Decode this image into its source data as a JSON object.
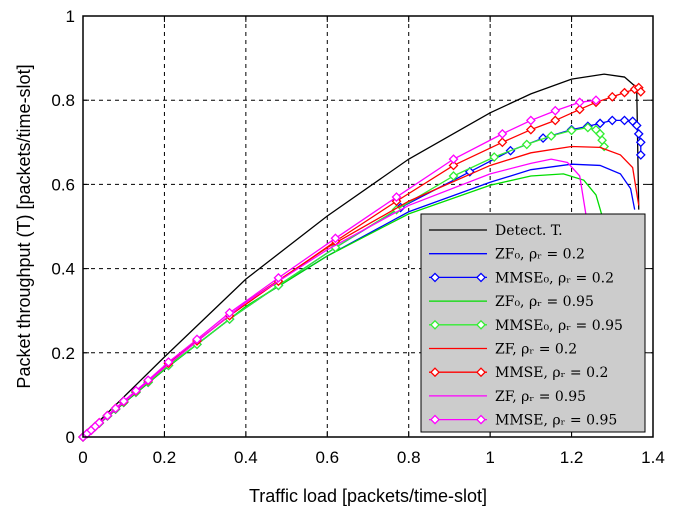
{
  "chart_data": {
    "type": "line",
    "xlabel": "Traffic load [packets/time-slot]",
    "ylabel": "Packet throughput (T) [packets/time-slot]",
    "xlim": [
      0,
      1.4
    ],
    "ylim": [
      0,
      1
    ],
    "xticks": [
      "0",
      "0.2",
      "0.4",
      "0.6",
      "0.8",
      "1",
      "1.2",
      "1.4"
    ],
    "yticks": [
      "0",
      "0.2",
      "0.4",
      "0.6",
      "0.8",
      "1"
    ],
    "grid": true,
    "legend_position": "lower-right",
    "series": [
      {
        "name": "Detect. T.",
        "color": "#000000",
        "marker": "none",
        "x": [
          0,
          0.2,
          0.4,
          0.6,
          0.8,
          1.0,
          1.1,
          1.2,
          1.28,
          1.33,
          1.36,
          1.365
        ],
        "y": [
          0,
          0.19,
          0.375,
          0.525,
          0.66,
          0.77,
          0.815,
          0.85,
          0.862,
          0.855,
          0.83,
          0.54
        ]
      },
      {
        "name": "ZF₀, ρᵣ = 0.2",
        "color": "#0000ff",
        "marker": "none",
        "x": [
          0,
          0.2,
          0.4,
          0.6,
          0.8,
          1.0,
          1.1,
          1.2,
          1.27,
          1.32,
          1.345,
          1.355
        ],
        "y": [
          0,
          0.16,
          0.31,
          0.43,
          0.535,
          0.605,
          0.635,
          0.648,
          0.645,
          0.625,
          0.59,
          0.54
        ]
      },
      {
        "name": "MMSE₀, ρᵣ = 0.2",
        "color": "#0000ff",
        "marker": "diamond",
        "x": [
          0,
          0.01,
          0.02,
          0.03,
          0.04,
          0.06,
          0.08,
          0.1,
          0.13,
          0.16,
          0.21,
          0.28,
          0.36,
          0.48,
          0.62,
          0.78,
          0.95,
          1.05,
          1.13,
          1.2,
          1.24,
          1.27,
          1.3,
          1.33,
          1.35,
          1.36,
          1.365,
          1.37,
          1.37
        ],
        "y": [
          0,
          0.008,
          0.016,
          0.025,
          0.033,
          0.05,
          0.066,
          0.082,
          0.106,
          0.13,
          0.17,
          0.22,
          0.28,
          0.36,
          0.45,
          0.545,
          0.63,
          0.68,
          0.71,
          0.73,
          0.738,
          0.745,
          0.752,
          0.752,
          0.75,
          0.74,
          0.72,
          0.7,
          0.67
        ]
      },
      {
        "name": "ZF₀, ρᵣ = 0.95",
        "color": "#00dd00",
        "marker": "none",
        "x": [
          0,
          0.2,
          0.4,
          0.6,
          0.8,
          1.0,
          1.1,
          1.18,
          1.23,
          1.26,
          1.275
        ],
        "y": [
          0,
          0.16,
          0.31,
          0.43,
          0.53,
          0.598,
          0.62,
          0.625,
          0.61,
          0.575,
          0.525
        ]
      },
      {
        "name": "MMSE₀, ρᵣ = 0.95",
        "color": "#33ee33",
        "marker": "diamond",
        "x": [
          0,
          0.01,
          0.02,
          0.03,
          0.04,
          0.06,
          0.08,
          0.1,
          0.13,
          0.16,
          0.21,
          0.28,
          0.36,
          0.48,
          0.62,
          0.77,
          0.91,
          1.01,
          1.09,
          1.15,
          1.2,
          1.24,
          1.26,
          1.27,
          1.275,
          1.28
        ],
        "y": [
          0,
          0.008,
          0.016,
          0.025,
          0.033,
          0.05,
          0.066,
          0.082,
          0.106,
          0.13,
          0.17,
          0.22,
          0.28,
          0.36,
          0.45,
          0.54,
          0.62,
          0.665,
          0.695,
          0.715,
          0.728,
          0.735,
          0.73,
          0.72,
          0.705,
          0.69
        ]
      },
      {
        "name": "ZF, ρᵣ = 0.2",
        "color": "#ff0000",
        "marker": "none",
        "x": [
          0,
          0.2,
          0.4,
          0.6,
          0.8,
          1.0,
          1.1,
          1.2,
          1.27,
          1.32,
          1.35,
          1.365
        ],
        "y": [
          0,
          0.165,
          0.32,
          0.45,
          0.56,
          0.645,
          0.675,
          0.69,
          0.688,
          0.67,
          0.64,
          0.55
        ]
      },
      {
        "name": "MMSE, ρᵣ = 0.2",
        "color": "#ff0000",
        "marker": "diamond",
        "x": [
          0,
          0.01,
          0.02,
          0.03,
          0.04,
          0.06,
          0.08,
          0.1,
          0.13,
          0.16,
          0.21,
          0.28,
          0.36,
          0.48,
          0.62,
          0.77,
          0.91,
          1.03,
          1.1,
          1.16,
          1.22,
          1.26,
          1.3,
          1.33,
          1.355,
          1.365,
          1.37
        ],
        "y": [
          0,
          0.008,
          0.016,
          0.025,
          0.034,
          0.051,
          0.068,
          0.084,
          0.109,
          0.134,
          0.175,
          0.228,
          0.288,
          0.37,
          0.465,
          0.56,
          0.645,
          0.7,
          0.73,
          0.752,
          0.778,
          0.795,
          0.808,
          0.818,
          0.826,
          0.83,
          0.82
        ]
      },
      {
        "name": "ZF, ρᵣ = 0.95",
        "color": "#ff00ff",
        "marker": "none",
        "x": [
          0,
          0.2,
          0.4,
          0.6,
          0.8,
          1.0,
          1.1,
          1.15,
          1.19,
          1.22,
          1.24
        ],
        "y": [
          0,
          0.165,
          0.32,
          0.445,
          0.55,
          0.625,
          0.65,
          0.66,
          0.652,
          0.62,
          0.5
        ]
      },
      {
        "name": "MMSE, ρᵣ = 0.95",
        "color": "#ff00ff",
        "marker": "diamond",
        "x": [
          0,
          0.01,
          0.02,
          0.03,
          0.04,
          0.06,
          0.08,
          0.1,
          0.13,
          0.16,
          0.21,
          0.28,
          0.36,
          0.48,
          0.62,
          0.77,
          0.91,
          1.03,
          1.1,
          1.16,
          1.22,
          1.26
        ],
        "y": [
          0,
          0.008,
          0.016,
          0.025,
          0.034,
          0.051,
          0.068,
          0.085,
          0.11,
          0.135,
          0.178,
          0.232,
          0.295,
          0.378,
          0.472,
          0.57,
          0.66,
          0.72,
          0.752,
          0.775,
          0.795,
          0.8
        ]
      }
    ]
  }
}
